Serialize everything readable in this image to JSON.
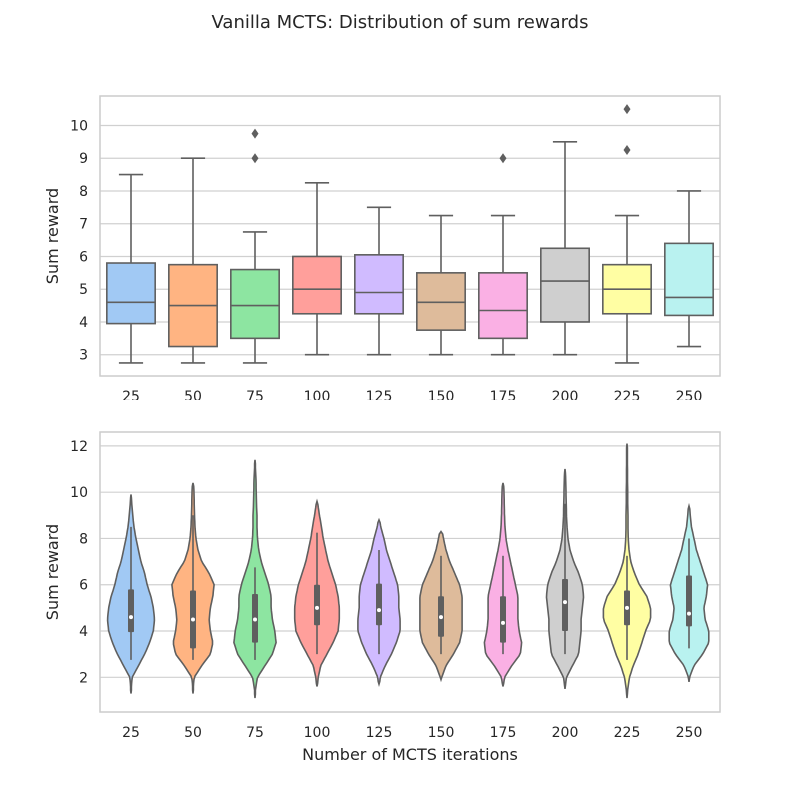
{
  "figure": {
    "title": "Vanilla MCTS: Distribution of sum rewards"
  },
  "palette": [
    "#a1c9f4",
    "#ffb482",
    "#8de5a1",
    "#ff9f9b",
    "#d0bbff",
    "#debb9b",
    "#fab0e4",
    "#cfcfcf",
    "#fffea3",
    "#b9f2f0"
  ],
  "chart_data": [
    {
      "type": "box",
      "xlabel": "Number of MCTS iterations",
      "ylabel": "Sum reward",
      "categories": [
        "25",
        "50",
        "75",
        "100",
        "125",
        "150",
        "175",
        "200",
        "225",
        "250"
      ],
      "ylim": [
        2.35,
        10.9
      ],
      "yticks": [
        3,
        4,
        5,
        6,
        7,
        8,
        9,
        10
      ],
      "grid": true,
      "boxes": [
        {
          "min": 2.75,
          "q1": 3.95,
          "median": 4.6,
          "q3": 5.8,
          "max": 8.5,
          "outliers": []
        },
        {
          "min": 2.75,
          "q1": 3.25,
          "median": 4.5,
          "q3": 5.75,
          "max": 9.0,
          "outliers": []
        },
        {
          "min": 2.75,
          "q1": 3.5,
          "median": 4.5,
          "q3": 5.6,
          "max": 6.75,
          "outliers": [
            9.0,
            9.75
          ]
        },
        {
          "min": 3.0,
          "q1": 4.25,
          "median": 5.0,
          "q3": 6.0,
          "max": 8.25,
          "outliers": []
        },
        {
          "min": 3.0,
          "q1": 4.25,
          "median": 4.9,
          "q3": 6.05,
          "max": 7.5,
          "outliers": []
        },
        {
          "min": 3.0,
          "q1": 3.75,
          "median": 4.6,
          "q3": 5.5,
          "max": 7.25,
          "outliers": []
        },
        {
          "min": 3.0,
          "q1": 3.5,
          "median": 4.35,
          "q3": 5.5,
          "max": 7.25,
          "outliers": [
            9.0
          ]
        },
        {
          "min": 3.0,
          "q1": 4.0,
          "median": 5.25,
          "q3": 6.25,
          "max": 9.5,
          "outliers": []
        },
        {
          "min": 2.75,
          "q1": 4.25,
          "median": 5.0,
          "q3": 5.75,
          "max": 7.25,
          "outliers": [
            9.25,
            10.5
          ]
        },
        {
          "min": 3.25,
          "q1": 4.2,
          "median": 4.75,
          "q3": 6.4,
          "max": 8.0,
          "outliers": []
        }
      ]
    },
    {
      "type": "violin",
      "xlabel": "Number of MCTS iterations",
      "ylabel": "Sum reward",
      "categories": [
        "25",
        "50",
        "75",
        "100",
        "125",
        "150",
        "175",
        "200",
        "225",
        "250"
      ],
      "ylim": [
        0.5,
        12.6
      ],
      "yticks": [
        2,
        4,
        6,
        8,
        10,
        12
      ],
      "grid": true,
      "density_grid": [
        1,
        1.5,
        2,
        2.5,
        3,
        3.5,
        4,
        4.5,
        5,
        5.5,
        6,
        6.5,
        7,
        7.5,
        8,
        8.5,
        9,
        9.5,
        10,
        10.5,
        11,
        11.5,
        12,
        12.5
      ],
      "violins": [
        {
          "extent": [
            1.3,
            9.9
          ],
          "widths": [
            0,
            0,
            0.05,
            0.3,
            0.55,
            0.75,
            0.9,
            0.95,
            0.9,
            0.8,
            0.65,
            0.55,
            0.4,
            0.3,
            0.2,
            0.12,
            0.07,
            0.03,
            0,
            0,
            0,
            0,
            0,
            0
          ]
        },
        {
          "extent": [
            1.3,
            10.4
          ],
          "widths": [
            0,
            0,
            0.05,
            0.35,
            0.7,
            0.8,
            0.7,
            0.65,
            0.7,
            0.8,
            0.85,
            0.65,
            0.35,
            0.2,
            0.12,
            0.08,
            0.06,
            0.05,
            0.04,
            0.02,
            0,
            0,
            0,
            0
          ]
        },
        {
          "extent": [
            1.1,
            11.4
          ],
          "widths": [
            0,
            0.02,
            0.1,
            0.4,
            0.7,
            0.85,
            0.8,
            0.7,
            0.65,
            0.65,
            0.55,
            0.4,
            0.25,
            0.15,
            0.1,
            0.08,
            0.08,
            0.06,
            0.05,
            0.04,
            0.02,
            0,
            0,
            0
          ]
        },
        {
          "extent": [
            1.6,
            9.6
          ],
          "widths": [
            0,
            0,
            0.05,
            0.15,
            0.4,
            0.65,
            0.85,
            0.9,
            0.9,
            0.85,
            0.75,
            0.6,
            0.45,
            0.35,
            0.25,
            0.18,
            0.1,
            0.03,
            0,
            0,
            0,
            0,
            0,
            0
          ]
        },
        {
          "extent": [
            1.7,
            8.8
          ],
          "widths": [
            0,
            0,
            0.05,
            0.25,
            0.5,
            0.7,
            0.85,
            0.85,
            0.8,
            0.8,
            0.75,
            0.6,
            0.45,
            0.3,
            0.2,
            0.07,
            0,
            0,
            0,
            0,
            0,
            0,
            0,
            0
          ]
        },
        {
          "extent": [
            1.9,
            8.3
          ],
          "widths": [
            0,
            0,
            0.03,
            0.2,
            0.5,
            0.75,
            0.85,
            0.85,
            0.85,
            0.85,
            0.75,
            0.55,
            0.35,
            0.2,
            0.1,
            0.02,
            0,
            0,
            0,
            0,
            0,
            0,
            0,
            0
          ]
        },
        {
          "extent": [
            1.6,
            10.4
          ],
          "widths": [
            0,
            0,
            0.06,
            0.35,
            0.7,
            0.75,
            0.65,
            0.6,
            0.6,
            0.6,
            0.5,
            0.4,
            0.3,
            0.2,
            0.12,
            0.08,
            0.06,
            0.05,
            0.04,
            0.02,
            0,
            0,
            0,
            0
          ]
        },
        {
          "extent": [
            1.5,
            11.0
          ],
          "widths": [
            0,
            0,
            0.06,
            0.3,
            0.55,
            0.6,
            0.65,
            0.65,
            0.7,
            0.75,
            0.7,
            0.55,
            0.35,
            0.2,
            0.12,
            0.08,
            0.06,
            0.05,
            0.04,
            0.03,
            0.01,
            0,
            0,
            0
          ]
        },
        {
          "extent": [
            1.1,
            12.1
          ],
          "widths": [
            0,
            0.03,
            0.1,
            0.25,
            0.45,
            0.6,
            0.75,
            0.95,
            0.95,
            0.8,
            0.5,
            0.3,
            0.15,
            0.08,
            0.05,
            0.04,
            0.04,
            0.03,
            0.03,
            0.02,
            0.02,
            0.01,
            0.005,
            0
          ]
        },
        {
          "extent": [
            1.8,
            9.4
          ],
          "widths": [
            0,
            0,
            0.02,
            0.2,
            0.55,
            0.8,
            0.8,
            0.65,
            0.6,
            0.7,
            0.75,
            0.6,
            0.45,
            0.3,
            0.2,
            0.1,
            0.05,
            0.02,
            0,
            0,
            0,
            0,
            0,
            0
          ]
        }
      ],
      "quartiles": [
        {
          "q1": 3.95,
          "median": 4.6,
          "q3": 5.8,
          "min": 2.75,
          "max": 8.5
        },
        {
          "q1": 3.25,
          "median": 4.5,
          "q3": 5.75,
          "min": 2.75,
          "max": 9.0
        },
        {
          "q1": 3.5,
          "median": 4.5,
          "q3": 5.6,
          "min": 2.75,
          "max": 6.75
        },
        {
          "q1": 4.25,
          "median": 5.0,
          "q3": 6.0,
          "min": 3.0,
          "max": 8.25
        },
        {
          "q1": 4.25,
          "median": 4.9,
          "q3": 6.05,
          "min": 3.0,
          "max": 7.5
        },
        {
          "q1": 3.75,
          "median": 4.6,
          "q3": 5.5,
          "min": 3.0,
          "max": 7.25
        },
        {
          "q1": 3.5,
          "median": 4.35,
          "q3": 5.5,
          "min": 3.0,
          "max": 7.25
        },
        {
          "q1": 4.0,
          "median": 5.25,
          "q3": 6.25,
          "min": 3.0,
          "max": 9.5
        },
        {
          "q1": 4.25,
          "median": 5.0,
          "q3": 5.75,
          "min": 2.75,
          "max": 7.25
        },
        {
          "q1": 4.2,
          "median": 4.75,
          "q3": 6.4,
          "min": 3.25,
          "max": 8.0
        }
      ]
    }
  ]
}
